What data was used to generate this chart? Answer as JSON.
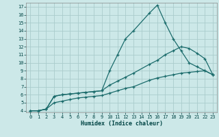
{
  "xlabel": "Humidex (Indice chaleur)",
  "bg_color": "#cce8e8",
  "grid_color": "#aacccc",
  "line_color": "#1a6b6b",
  "xlim": [
    -0.5,
    23.5
  ],
  "ylim": [
    3.8,
    17.5
  ],
  "xticks": [
    0,
    1,
    2,
    3,
    4,
    5,
    6,
    7,
    8,
    9,
    10,
    11,
    12,
    13,
    14,
    15,
    16,
    17,
    18,
    19,
    20,
    21,
    22,
    23
  ],
  "yticks": [
    4,
    5,
    6,
    7,
    8,
    9,
    10,
    11,
    12,
    13,
    14,
    15,
    16,
    17
  ],
  "line1_x": [
    0,
    1,
    2,
    3,
    4,
    5,
    6,
    7,
    8,
    9,
    10,
    11,
    12,
    13,
    15,
    16,
    17,
    18,
    19,
    20,
    21,
    22,
    23
  ],
  "line1_y": [
    4.0,
    4.0,
    4.2,
    5.8,
    6.0,
    6.1,
    6.2,
    6.3,
    6.4,
    6.5,
    9.0,
    11.0,
    13.0,
    14.0,
    16.2,
    17.2,
    15.0,
    13.0,
    11.5,
    10.0,
    9.5,
    9.0,
    8.5
  ],
  "line2_x": [
    0,
    1,
    2,
    3,
    4,
    5,
    6,
    7,
    8,
    9,
    10,
    11,
    12,
    13,
    15,
    16,
    17,
    18,
    19,
    20,
    21,
    22,
    23
  ],
  "line2_y": [
    4.0,
    4.0,
    4.2,
    5.8,
    6.0,
    6.1,
    6.2,
    6.3,
    6.4,
    6.5,
    7.2,
    7.7,
    8.2,
    8.7,
    9.8,
    10.3,
    11.0,
    11.5,
    12.0,
    11.8,
    11.2,
    10.5,
    8.5
  ],
  "line3_x": [
    0,
    1,
    2,
    3,
    4,
    5,
    6,
    7,
    8,
    9,
    10,
    11,
    12,
    13,
    15,
    16,
    17,
    18,
    19,
    20,
    21,
    22,
    23
  ],
  "line3_y": [
    4.0,
    4.0,
    4.2,
    5.0,
    5.2,
    5.4,
    5.6,
    5.7,
    5.8,
    5.9,
    6.2,
    6.5,
    6.8,
    7.0,
    7.8,
    8.1,
    8.3,
    8.5,
    8.7,
    8.8,
    8.9,
    9.0,
    8.5
  ]
}
